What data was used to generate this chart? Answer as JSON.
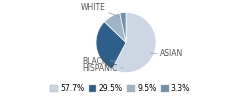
{
  "labels": [
    "WHITE",
    "ASIAN",
    "BLACK",
    "HISPANIC"
  ],
  "values": [
    57.7,
    29.5,
    9.5,
    3.3
  ],
  "colors": [
    "#cdd6e3",
    "#2e5f8a",
    "#a0b4c8",
    "#7090aa"
  ],
  "legend_labels": [
    "57.7%",
    "29.5%",
    "9.5%",
    "3.3%"
  ],
  "legend_colors": [
    "#cdd6e3",
    "#2e5f8a",
    "#a0b4c8",
    "#7090aa"
  ],
  "label_fontsize": 5.5,
  "legend_fontsize": 5.5,
  "startangle": 90
}
